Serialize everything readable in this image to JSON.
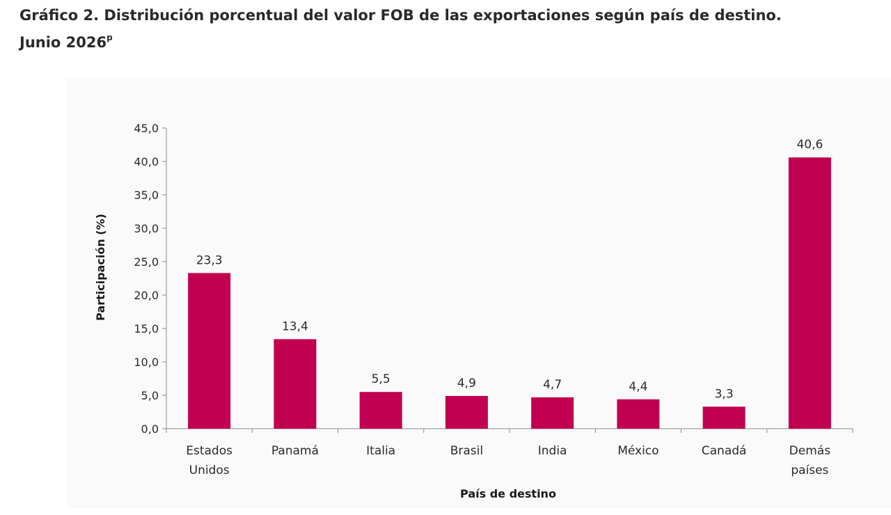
{
  "title": {
    "line1": "Gráfico 2. Distribución porcentual del valor FOB de las exportaciones según país de destino.",
    "line2": "Junio 2026",
    "superscript": "p"
  },
  "chart_data": {
    "type": "bar",
    "categories": [
      [
        "Estados",
        "Unidos"
      ],
      [
        "Panamá"
      ],
      [
        "Italia"
      ],
      [
        "Brasil"
      ],
      [
        "India"
      ],
      [
        "México"
      ],
      [
        "Canadá"
      ],
      [
        "Demás",
        "países"
      ]
    ],
    "values": [
      23.3,
      13.4,
      5.5,
      4.9,
      4.7,
      4.4,
      3.3,
      40.6
    ],
    "value_labels": [
      "23,3",
      "13,4",
      "5,5",
      "4,9",
      "4,7",
      "4,4",
      "3,3",
      "40,6"
    ],
    "xlabel": "País de destino",
    "ylabel": "Participación (%)",
    "ylim": [
      0,
      45
    ],
    "yticks": [
      0,
      5,
      10,
      15,
      20,
      25,
      30,
      35,
      40,
      45
    ],
    "ytick_labels": [
      "0,0",
      "5,0",
      "10,0",
      "15,0",
      "20,0",
      "25,0",
      "30,0",
      "35,0",
      "40,0",
      "45,0"
    ],
    "bar_color": "#c0004f",
    "grid": false,
    "legend": "none"
  }
}
